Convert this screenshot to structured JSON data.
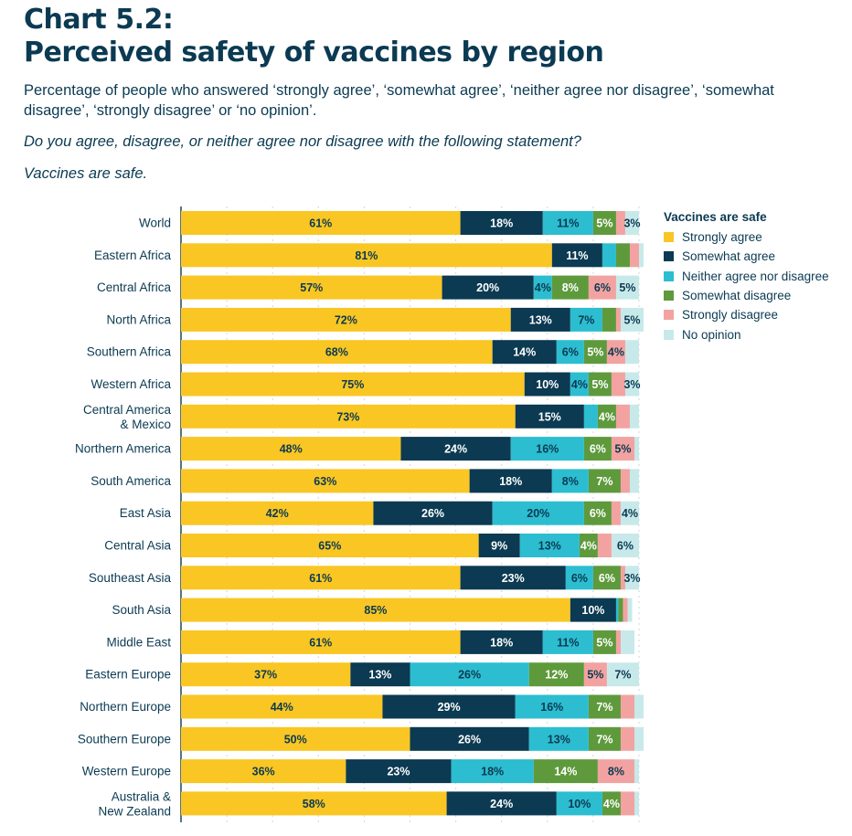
{
  "header": {
    "title_line1": "Chart 5.2:",
    "title_line2": "Perceived safety of vaccines by region",
    "subtitle": "Percentage of people who answered ‘strongly agree’, ‘somewhat agree’, ‘neither agree nor disagree’, ‘somewhat disagree’, ‘strongly disagree’ or ‘no opinion’.",
    "question": "Do you agree, disagree, or neither agree nor disagree with the following statement?",
    "statement": "Vaccines are safe."
  },
  "colors": {
    "strongly_agree": "#f9c623",
    "somewhat_agree": "#0b3a52",
    "neither": "#2cbdd0",
    "somewhat_disagree": "#5e9a3c",
    "strongly_disagree": "#f2a3a1",
    "no_opinion": "#c8e9ea",
    "text_dark": "#0b3a52",
    "text_light": "#ffffff"
  },
  "chart_data": {
    "type": "bar",
    "orientation": "horizontal-stacked",
    "legend_title": "Vaccines are safe",
    "legend_position": "top-right",
    "xlim": [
      0,
      100
    ],
    "grid": true,
    "categories": [
      "World",
      "Eastern Africa",
      "Central Africa",
      "North Africa",
      "Southern Africa",
      "Western Africa",
      "Central America\n& Mexico",
      "Northern America",
      "South America",
      "East Asia",
      "Central Asia",
      "Southeast Asia",
      "South Asia",
      "Middle East",
      "Eastern Europe",
      "Northern Europe",
      "Southern Europe",
      "Western Europe",
      "Australia &\nNew Zealand"
    ],
    "series": [
      {
        "name": "Strongly agree",
        "key": "strongly_agree",
        "values": [
          61,
          81,
          57,
          72,
          68,
          75,
          73,
          48,
          63,
          42,
          65,
          61,
          85,
          61,
          37,
          44,
          50,
          36,
          58
        ]
      },
      {
        "name": "Somewhat agree",
        "key": "somewhat_agree",
        "values": [
          18,
          11,
          20,
          13,
          14,
          10,
          15,
          24,
          18,
          26,
          9,
          23,
          10,
          18,
          13,
          29,
          26,
          23,
          24
        ]
      },
      {
        "name": "Neither agree nor disagree",
        "key": "neither",
        "values": [
          11,
          3,
          4,
          7,
          6,
          4,
          3,
          16,
          8,
          20,
          13,
          6,
          0.5,
          11,
          26,
          16,
          13,
          18,
          10
        ]
      },
      {
        "name": "Somewhat disagree",
        "key": "somewhat_disagree",
        "values": [
          5,
          3,
          8,
          3,
          5,
          5,
          4,
          6,
          7,
          6,
          4,
          6,
          1,
          5,
          12,
          7,
          7,
          14,
          4
        ]
      },
      {
        "name": "Strongly disagree",
        "key": "strongly_disagree",
        "values": [
          2,
          2,
          6,
          1,
          4,
          3,
          3,
          5,
          2,
          2,
          3,
          1,
          1,
          1,
          5,
          3,
          3,
          8,
          3
        ]
      },
      {
        "name": "No opinion",
        "key": "no_opinion",
        "values": [
          3,
          1,
          5,
          5,
          3,
          3,
          2,
          1,
          2,
          4,
          6,
          3,
          1,
          3,
          7,
          2,
          2,
          1,
          1
        ]
      }
    ],
    "data_labels": [
      [
        "61%",
        "18%",
        "11%",
        "5%",
        "",
        "3%"
      ],
      [
        "81%",
        "11%",
        "",
        "",
        "",
        ""
      ],
      [
        "57%",
        "20%",
        "4%",
        "8%",
        "6%",
        "5%"
      ],
      [
        "72%",
        "13%",
        "7%",
        "",
        "",
        "5%"
      ],
      [
        "68%",
        "14%",
        "6%",
        "5%",
        "4%",
        ""
      ],
      [
        "75%",
        "10%",
        "4%",
        "5%",
        "",
        "3%"
      ],
      [
        "73%",
        "15%",
        "",
        "4%",
        "",
        ""
      ],
      [
        "48%",
        "24%",
        "16%",
        "6%",
        "5%",
        ""
      ],
      [
        "63%",
        "18%",
        "8%",
        "7%",
        "",
        ""
      ],
      [
        "42%",
        "26%",
        "20%",
        "6%",
        "",
        "4%"
      ],
      [
        "65%",
        "9%",
        "13%",
        "4%",
        "",
        "6%"
      ],
      [
        "61%",
        "23%",
        "6%",
        "6%",
        "",
        "3%"
      ],
      [
        "85%",
        "10%",
        "",
        "",
        "",
        ""
      ],
      [
        "61%",
        "18%",
        "11%",
        "5%",
        "",
        ""
      ],
      [
        "37%",
        "13%",
        "26%",
        "12%",
        "5%",
        "7%"
      ],
      [
        "44%",
        "29%",
        "16%",
        "7%",
        "",
        ""
      ],
      [
        "50%",
        "26%",
        "13%",
        "7%",
        "",
        ""
      ],
      [
        "36%",
        "23%",
        "18%",
        "14%",
        "8%",
        ""
      ],
      [
        "58%",
        "24%",
        "10%",
        "4%",
        "",
        ""
      ]
    ]
  }
}
